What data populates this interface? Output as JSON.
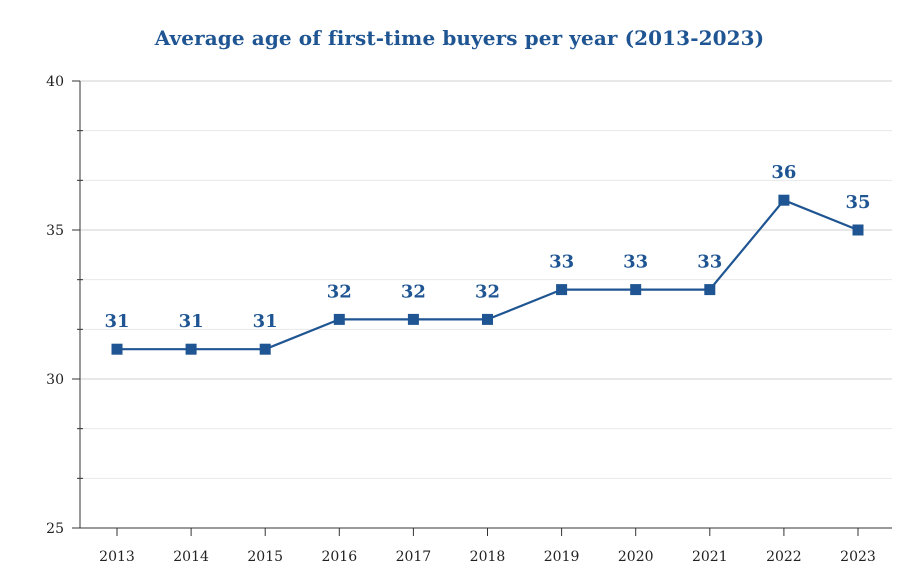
{
  "chart_data": {
    "type": "line",
    "title": "Average age of first-time buyers per year (2013-2023)",
    "xlabel": "",
    "ylabel": "",
    "categories": [
      "2013",
      "2014",
      "2015",
      "2016",
      "2017",
      "2018",
      "2019",
      "2020",
      "2021",
      "2022",
      "2023"
    ],
    "series": [
      {
        "name": "Average age",
        "values": [
          31,
          31,
          31,
          32,
          32,
          32,
          33,
          33,
          33,
          36,
          35
        ],
        "labels": [
          "31",
          "31",
          "31",
          "32",
          "32",
          "32",
          "33",
          "33",
          "33",
          "36",
          "35"
        ]
      }
    ],
    "ylim": [
      25,
      40
    ],
    "yticks": [
      25,
      30,
      35,
      40
    ],
    "ytick_labels": [
      "25",
      "30",
      "35",
      "40"
    ],
    "grid": true,
    "legend": "none",
    "colors": {
      "line": "#1f5592",
      "title": "#1f5592",
      "grid": "#dddddd",
      "axis": "#333333"
    }
  }
}
